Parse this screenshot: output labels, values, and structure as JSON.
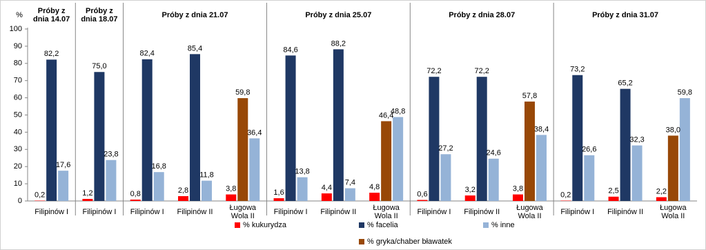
{
  "chart_data": {
    "type": "bar",
    "y_label": "%",
    "groups": [
      {
        "label": "Próby z dnia 14.07",
        "categories": [
          "Filipinów I"
        ]
      },
      {
        "label": "Próby z dnia 18.07",
        "categories": [
          "Filipinów I"
        ]
      },
      {
        "label": "Próby z dnia 21.07",
        "categories": [
          "Filipinów I",
          "Filipinów II",
          "Ługowa Wola II"
        ]
      },
      {
        "label": "Próby z dnia 25.07",
        "categories": [
          "Filipinów I",
          "Filipinów II",
          "Ługowa Wola II"
        ]
      },
      {
        "label": "Próby z dnia 28.07",
        "categories": [
          "Filipinów I",
          "Filipinów II",
          "Ługowa Wola II"
        ]
      },
      {
        "label": "Próby z dnia 31.07",
        "categories": [
          "Filipinów I",
          "Filipinów II",
          "Ługowa Wola II"
        ]
      }
    ],
    "series": [
      {
        "name": "% kukurydza",
        "color": "#ff0000",
        "values": [
          0.2,
          1.2,
          0.8,
          2.8,
          3.8,
          1.6,
          4.4,
          4.8,
          0.6,
          3.2,
          3.8,
          0.2,
          2.5,
          2.2
        ],
        "value_labels": [
          "0,2",
          "1,2",
          "0,8",
          "2,8",
          "3,8",
          "1,6",
          "4,4",
          "4,8",
          "0,6",
          "3,2",
          "3,8",
          "0,2",
          "2,5",
          "2,2"
        ]
      },
      {
        "name": "% facelia",
        "color": "#1f3864",
        "values": [
          82.2,
          75.0,
          82.4,
          85.4,
          null,
          84.6,
          88.2,
          null,
          72.2,
          72.2,
          null,
          73.2,
          65.2,
          null
        ],
        "value_labels": [
          "82,2",
          "75,0",
          "82,4",
          "85,4",
          null,
          "84,6",
          "88,2",
          null,
          "72,2",
          "72,2",
          null,
          "73,2",
          "65,2",
          null
        ]
      },
      {
        "name": "% inne",
        "color": "#95b3d7",
        "values": [
          17.6,
          23.8,
          16.8,
          11.8,
          36.4,
          13.8,
          7.4,
          48.8,
          27.2,
          24.6,
          38.4,
          26.6,
          32.3,
          59.8
        ],
        "value_labels": [
          "17,6",
          "23,8",
          "16,8",
          "11,8",
          "36,4",
          "13,8",
          "7,4",
          "48,8",
          "27,2",
          "24,6",
          "38,4",
          "26,6",
          "32,3",
          "59,8"
        ]
      },
      {
        "name": "% gryka/chaber bławatek",
        "color": "#984807",
        "values": [
          null,
          null,
          null,
          null,
          59.8,
          null,
          null,
          46.4,
          null,
          null,
          57.8,
          null,
          null,
          38.0
        ],
        "value_labels": [
          null,
          null,
          null,
          null,
          "59,8",
          null,
          null,
          "46,4",
          null,
          null,
          "57,8",
          null,
          null,
          "38,0"
        ]
      }
    ],
    "ylim": [
      0,
      100
    ],
    "yticks": [
      0,
      10,
      20,
      30,
      40,
      50,
      60,
      70,
      80,
      90,
      100
    ],
    "grid": false,
    "legend": "bottom"
  }
}
